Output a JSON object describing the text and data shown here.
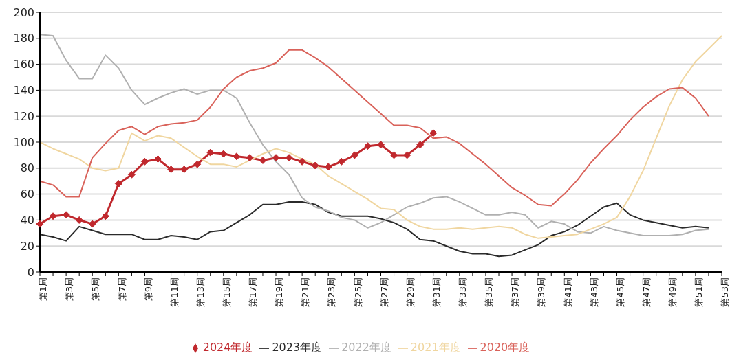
{
  "chart_data": {
    "type": "line",
    "categories": [
      "第1周",
      null,
      "第3周",
      null,
      "第5周",
      null,
      "第7周",
      null,
      "第9周",
      null,
      "第11周",
      null,
      "第13周",
      null,
      "第15周",
      null,
      "第17周",
      null,
      "第19周",
      null,
      "第21周",
      null,
      "第23周",
      null,
      "第25周",
      null,
      "第27周",
      null,
      "第29周",
      null,
      "第31周",
      null,
      "第33周",
      null,
      "第35周",
      null,
      "第37周",
      null,
      "第39周",
      null,
      "第41周",
      null,
      "第43周",
      null,
      "第45周",
      null,
      "第47周",
      null,
      "第49周",
      null,
      "第51周",
      null,
      "第53周"
    ],
    "series": [
      {
        "name": "2024年度",
        "color": "#c0282d",
        "marker": "diamond",
        "values": [
          37,
          43,
          44,
          40,
          37,
          43,
          68,
          75,
          85,
          87,
          79,
          79,
          83,
          92,
          91,
          89,
          88,
          86,
          88,
          88,
          85,
          82,
          81,
          85,
          90,
          97,
          98,
          90,
          90,
          98,
          107,
          null,
          null,
          null,
          null,
          null,
          null,
          null,
          null,
          null,
          null,
          null,
          null,
          null,
          null,
          null,
          null,
          null,
          null,
          null,
          null,
          null,
          null
        ]
      },
      {
        "name": "2023年度",
        "color": "#2b2b2b",
        "values": [
          29,
          27,
          24,
          35,
          32,
          29,
          29,
          29,
          25,
          25,
          28,
          27,
          25,
          31,
          32,
          38,
          44,
          52,
          52,
          54,
          54,
          52,
          46,
          43,
          43,
          43,
          41,
          38,
          33,
          25,
          24,
          20,
          16,
          14,
          14,
          12,
          13,
          17,
          21,
          28,
          31,
          36,
          43,
          50,
          53,
          44,
          40,
          38,
          36,
          34,
          35,
          34,
          null
        ]
      },
      {
        "name": "2022年度",
        "color": "#b0b0b0",
        "values": [
          183,
          182,
          163,
          149,
          149,
          167,
          157,
          140,
          129,
          134,
          138,
          141,
          137,
          140,
          140,
          134,
          115,
          98,
          85,
          75,
          57,
          50,
          47,
          42,
          40,
          34,
          38,
          44,
          50,
          53,
          57,
          58,
          54,
          49,
          44,
          44,
          46,
          44,
          34,
          39,
          37,
          31,
          30,
          35,
          32,
          30,
          28,
          28,
          28,
          29,
          32,
          33,
          null
        ]
      },
      {
        "name": "2021年度",
        "color": "#f0d6a0",
        "values": [
          100,
          95,
          91,
          87,
          80,
          78,
          80,
          107,
          101,
          105,
          103,
          96,
          89,
          83,
          83,
          81,
          86,
          91,
          95,
          92,
          87,
          83,
          74,
          68,
          62,
          56,
          49,
          48,
          40,
          35,
          33,
          33,
          34,
          33,
          34,
          35,
          34,
          29,
          26,
          27,
          28,
          29,
          33,
          37,
          42,
          58,
          78,
          103,
          128,
          148,
          162,
          172,
          182
        ]
      },
      {
        "name": "2020年度",
        "color": "#d9625a",
        "values": [
          70,
          67,
          58,
          58,
          88,
          99,
          109,
          112,
          106,
          112,
          114,
          115,
          117,
          127,
          141,
          150,
          155,
          157,
          161,
          171,
          171,
          165,
          158,
          149,
          140,
          131,
          122,
          113,
          113,
          111,
          103,
          104,
          99,
          91,
          83,
          74,
          65,
          59,
          52,
          51,
          60,
          71,
          84,
          95,
          105,
          117,
          127,
          135,
          141,
          142,
          134,
          120,
          null
        ]
      }
    ],
    "ylim": [
      0,
      200
    ],
    "yticks": [
      0,
      20,
      40,
      60,
      80,
      100,
      120,
      140,
      160,
      180,
      200
    ],
    "grid": "y",
    "legend": "bottom",
    "marker": "none",
    "line_style": "solid"
  }
}
